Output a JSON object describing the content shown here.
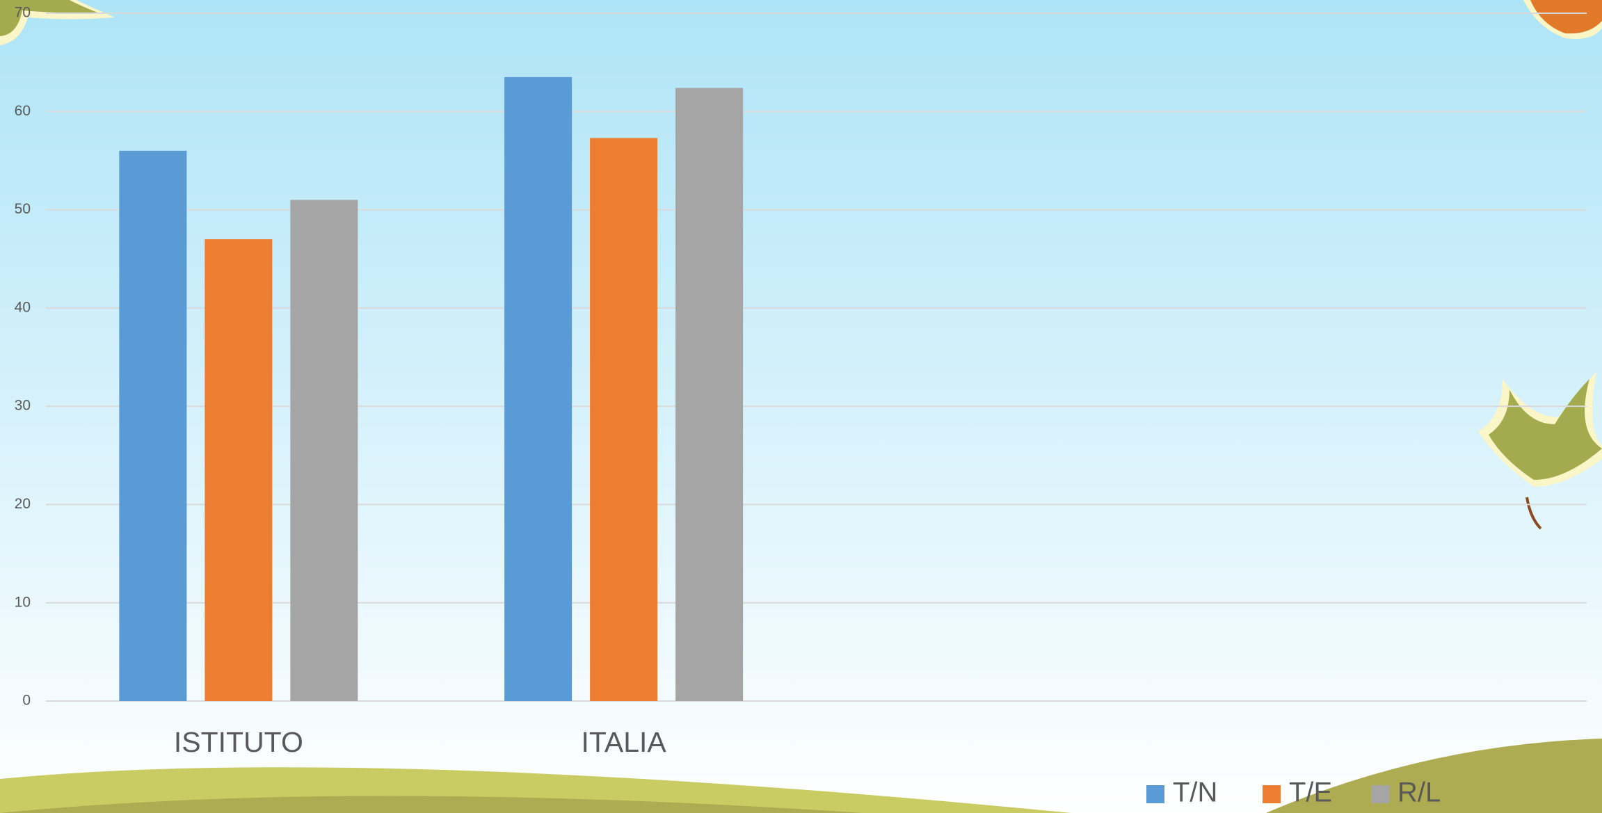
{
  "chart_data": {
    "type": "bar",
    "categories": [
      "ISTITUTO",
      "ITALIA",
      null,
      null
    ],
    "series": [
      {
        "name": "T/N",
        "color": "#5b9bd5",
        "values": [
          56,
          63.5,
          null,
          null
        ]
      },
      {
        "name": "T/E",
        "color": "#ed7d31",
        "values": [
          47,
          57.3,
          null,
          null
        ]
      },
      {
        "name": "R/L",
        "color": "#a5a5a5",
        "values": [
          51,
          62.4,
          null,
          null
        ]
      }
    ],
    "ylim": [
      0,
      70
    ],
    "yticks": [
      0,
      10,
      20,
      30,
      40,
      50,
      60,
      70
    ],
    "grid": true,
    "legend": "bottom"
  }
}
